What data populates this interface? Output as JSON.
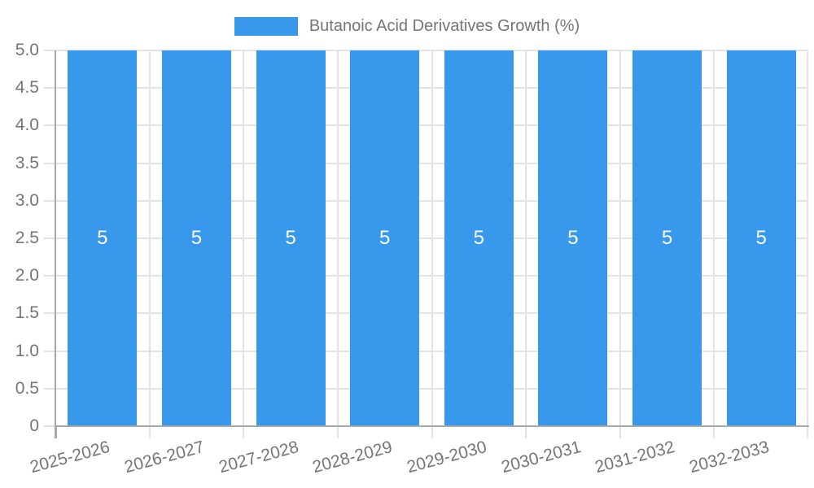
{
  "chart_data": {
    "type": "bar",
    "title": "Butanoic Acid Derivatives Growth (%)",
    "categories": [
      "2025-2026",
      "2026-2027",
      "2027-2028",
      "2028-2029",
      "2029-2030",
      "2030-2031",
      "2031-2032",
      "2032-2033"
    ],
    "values": [
      5,
      5,
      5,
      5,
      5,
      5,
      5,
      5
    ],
    "bar_value_labels": [
      "5",
      "5",
      "5",
      "5",
      "5",
      "5",
      "5",
      "5"
    ],
    "xlabel": "",
    "ylabel": "",
    "ylim": [
      0,
      5
    ],
    "ytick_step": 0.5,
    "ytick_labels": [
      "0",
      "0.5",
      "1.0",
      "1.5",
      "2.0",
      "2.5",
      "3.0",
      "3.5",
      "4.0",
      "4.5",
      "5.0"
    ],
    "grid": true,
    "legend_position": "top",
    "colors": {
      "bar": "#3898ec",
      "grid": "#e3e3e3",
      "axis": "#a8a8a8",
      "tick_text": "#757575",
      "legend_text": "#757575",
      "value_label": "#ffffff",
      "background": "#ffffff"
    }
  }
}
